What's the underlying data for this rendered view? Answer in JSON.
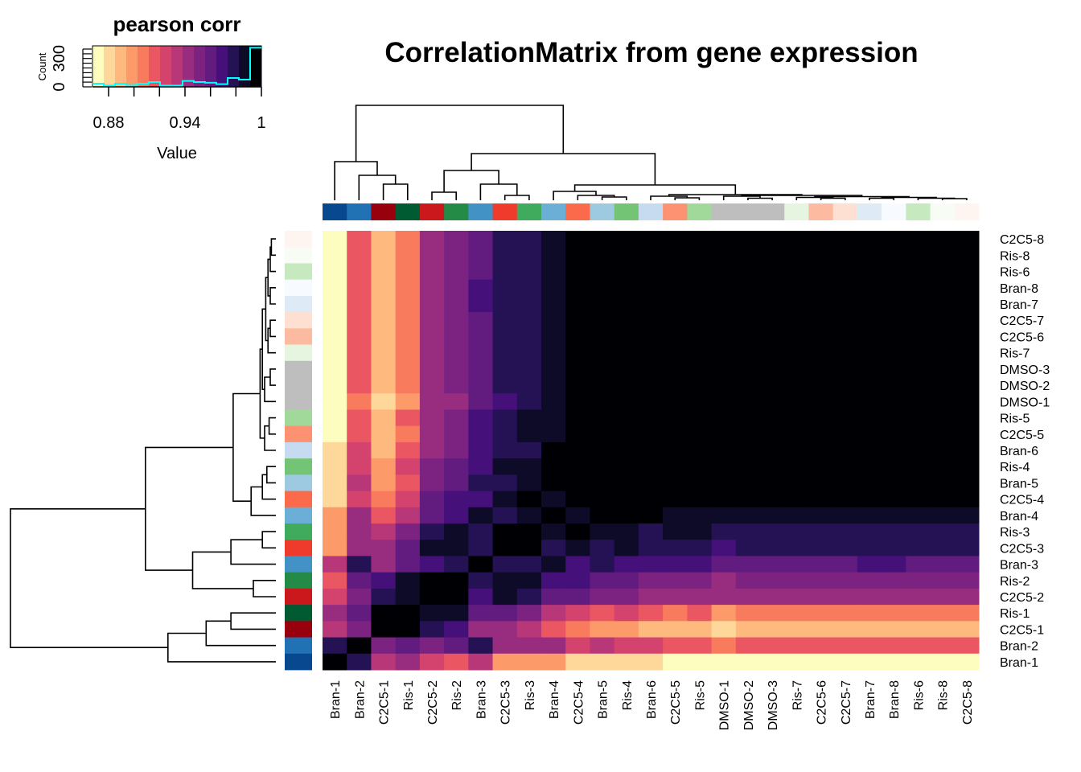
{
  "chart_data": {
    "type": "heatmap",
    "title": "CorrelationMatrix from gene expression",
    "columns": [
      "Bran-1",
      "Bran-2",
      "C2C5-1",
      "Ris-1",
      "C2C5-2",
      "Ris-2",
      "Bran-3",
      "C2C5-3",
      "Ris-3",
      "Bran-4",
      "C2C5-4",
      "Bran-5",
      "Ris-4",
      "Bran-6",
      "C2C5-5",
      "Ris-5",
      "DMSO-1",
      "DMSO-2",
      "DMSO-3",
      "Ris-7",
      "C2C5-6",
      "C2C5-7",
      "Bran-7",
      "Bran-8",
      "Ris-6",
      "Ris-8",
      "C2C5-8"
    ],
    "rows": [
      "C2C5-8",
      "Ris-8",
      "Ris-6",
      "Bran-8",
      "Bran-7",
      "C2C5-7",
      "C2C5-6",
      "Ris-7",
      "DMSO-3",
      "DMSO-2",
      "DMSO-1",
      "Ris-5",
      "C2C5-5",
      "Bran-6",
      "Ris-4",
      "Bran-5",
      "C2C5-4",
      "Bran-4",
      "Ris-3",
      "C2C5-3",
      "Bran-3",
      "Ris-2",
      "C2C5-2",
      "Ris-1",
      "C2C5-1",
      "Bran-2",
      "Bran-1"
    ],
    "values": [
      [
        0.872,
        0.916,
        0.89,
        0.907,
        0.943,
        0.952,
        0.961,
        0.978,
        0.978,
        0.987,
        0.996,
        0.996,
        0.996,
        0.996,
        0.996,
        0.996,
        0.996,
        0.996,
        0.996,
        0.996,
        0.996,
        0.996,
        0.996,
        0.996,
        0.996,
        0.996,
        1
      ],
      [
        0.872,
        0.916,
        0.89,
        0.907,
        0.943,
        0.952,
        0.961,
        0.978,
        0.978,
        0.987,
        0.996,
        0.996,
        0.996,
        0.996,
        0.996,
        0.996,
        0.996,
        0.996,
        0.996,
        0.996,
        0.996,
        0.996,
        0.996,
        0.996,
        0.996,
        1,
        0.996
      ],
      [
        0.872,
        0.916,
        0.89,
        0.907,
        0.943,
        0.952,
        0.961,
        0.978,
        0.978,
        0.987,
        0.996,
        0.996,
        0.996,
        0.996,
        0.996,
        0.996,
        0.996,
        0.996,
        0.996,
        0.996,
        0.996,
        0.996,
        0.996,
        0.996,
        1,
        0.996,
        0.996
      ],
      [
        0.872,
        0.916,
        0.89,
        0.907,
        0.943,
        0.952,
        0.97,
        0.978,
        0.978,
        0.987,
        0.996,
        0.996,
        0.996,
        0.996,
        0.996,
        0.996,
        0.996,
        0.996,
        0.996,
        0.996,
        0.996,
        0.996,
        0.996,
        1,
        0.996,
        0.996,
        0.996
      ],
      [
        0.872,
        0.916,
        0.89,
        0.907,
        0.943,
        0.952,
        0.97,
        0.978,
        0.978,
        0.987,
        0.996,
        0.996,
        0.996,
        0.996,
        0.996,
        0.996,
        0.996,
        0.996,
        0.996,
        0.996,
        0.996,
        0.996,
        1,
        0.996,
        0.996,
        0.996,
        0.996
      ],
      [
        0.872,
        0.916,
        0.89,
        0.907,
        0.943,
        0.952,
        0.961,
        0.978,
        0.978,
        0.987,
        0.996,
        0.996,
        0.996,
        0.996,
        0.996,
        0.996,
        0.996,
        0.996,
        0.996,
        0.996,
        0.996,
        1,
        0.996,
        0.996,
        0.996,
        0.996,
        0.996
      ],
      [
        0.872,
        0.916,
        0.89,
        0.907,
        0.943,
        0.952,
        0.961,
        0.978,
        0.978,
        0.987,
        0.996,
        0.996,
        0.996,
        0.996,
        0.996,
        0.996,
        0.996,
        0.996,
        0.996,
        0.996,
        1,
        0.996,
        0.996,
        0.996,
        0.996,
        0.996,
        0.996
      ],
      [
        0.872,
        0.916,
        0.89,
        0.907,
        0.943,
        0.952,
        0.961,
        0.978,
        0.978,
        0.987,
        0.996,
        0.996,
        0.996,
        0.996,
        0.996,
        0.996,
        0.996,
        0.996,
        0.996,
        1,
        0.996,
        0.996,
        0.996,
        0.996,
        0.996,
        0.996,
        0.996
      ],
      [
        0.872,
        0.916,
        0.89,
        0.907,
        0.943,
        0.952,
        0.961,
        0.978,
        0.978,
        0.987,
        0.996,
        0.996,
        0.996,
        0.996,
        0.996,
        0.996,
        0.996,
        0.996,
        1,
        0.996,
        0.996,
        0.996,
        0.996,
        0.996,
        0.996,
        0.996,
        0.996
      ],
      [
        0.872,
        0.916,
        0.89,
        0.907,
        0.943,
        0.952,
        0.961,
        0.978,
        0.978,
        0.987,
        0.996,
        0.996,
        0.996,
        0.996,
        0.996,
        0.996,
        0.996,
        1,
        0.996,
        0.996,
        0.996,
        0.996,
        0.996,
        0.996,
        0.996,
        0.996,
        0.996
      ],
      [
        0.872,
        0.907,
        0.881,
        0.898,
        0.943,
        0.943,
        0.961,
        0.97,
        0.978,
        0.987,
        0.996,
        0.996,
        0.996,
        0.996,
        0.996,
        0.996,
        1,
        0.996,
        0.996,
        0.996,
        0.996,
        0.996,
        0.996,
        0.996,
        0.996,
        0.996,
        0.996
      ],
      [
        0.872,
        0.916,
        0.89,
        0.916,
        0.943,
        0.952,
        0.97,
        0.978,
        0.987,
        0.987,
        0.996,
        0.996,
        0.996,
        0.996,
        0.996,
        1,
        0.996,
        0.996,
        0.996,
        0.996,
        0.996,
        0.996,
        0.996,
        0.996,
        0.996,
        0.996,
        0.996
      ],
      [
        0.872,
        0.916,
        0.89,
        0.907,
        0.943,
        0.952,
        0.97,
        0.978,
        0.987,
        0.987,
        0.996,
        0.996,
        0.996,
        0.996,
        1,
        0.996,
        0.996,
        0.996,
        0.996,
        0.996,
        0.996,
        0.996,
        0.996,
        0.996,
        0.996,
        0.996,
        0.996
      ],
      [
        0.881,
        0.925,
        0.89,
        0.916,
        0.943,
        0.952,
        0.97,
        0.978,
        0.978,
        0.996,
        0.996,
        0.996,
        0.996,
        1,
        0.996,
        0.996,
        0.996,
        0.996,
        0.996,
        0.996,
        0.996,
        0.996,
        0.996,
        0.996,
        0.996,
        0.996,
        0.996
      ],
      [
        0.881,
        0.925,
        0.898,
        0.925,
        0.952,
        0.961,
        0.97,
        0.987,
        0.987,
        0.996,
        0.996,
        0.996,
        1,
        0.996,
        0.996,
        0.996,
        0.996,
        0.996,
        0.996,
        0.996,
        0.996,
        0.996,
        0.996,
        0.996,
        0.996,
        0.996,
        0.996
      ],
      [
        0.881,
        0.934,
        0.898,
        0.916,
        0.952,
        0.961,
        0.978,
        0.978,
        0.987,
        0.996,
        0.996,
        1,
        0.996,
        0.996,
        0.996,
        0.996,
        0.996,
        0.996,
        0.996,
        0.996,
        0.996,
        0.996,
        0.996,
        0.996,
        0.996,
        0.996,
        0.996
      ],
      [
        0.881,
        0.925,
        0.907,
        0.925,
        0.961,
        0.97,
        0.97,
        0.987,
        0.996,
        0.987,
        1,
        0.996,
        0.996,
        0.996,
        0.996,
        0.996,
        0.996,
        0.996,
        0.996,
        0.996,
        0.996,
        0.996,
        0.996,
        0.996,
        0.996,
        0.996,
        0.996
      ],
      [
        0.898,
        0.943,
        0.916,
        0.934,
        0.961,
        0.97,
        0.987,
        0.978,
        0.987,
        1,
        0.987,
        0.996,
        0.996,
        0.996,
        0.987,
        0.987,
        0.987,
        0.987,
        0.987,
        0.987,
        0.987,
        0.987,
        0.987,
        0.987,
        0.987,
        0.987,
        0.987
      ],
      [
        0.898,
        0.943,
        0.934,
        0.952,
        0.978,
        0.987,
        0.978,
        0.996,
        1,
        0.987,
        0.996,
        0.987,
        0.987,
        0.978,
        0.987,
        0.987,
        0.978,
        0.978,
        0.978,
        0.978,
        0.978,
        0.978,
        0.978,
        0.978,
        0.978,
        0.978,
        0.978
      ],
      [
        0.898,
        0.943,
        0.943,
        0.961,
        0.987,
        0.987,
        0.978,
        1,
        0.996,
        0.978,
        0.987,
        0.978,
        0.987,
        0.978,
        0.978,
        0.978,
        0.97,
        0.978,
        0.978,
        0.978,
        0.978,
        0.978,
        0.978,
        0.978,
        0.978,
        0.978,
        0.978
      ],
      [
        0.934,
        0.978,
        0.943,
        0.961,
        0.97,
        0.978,
        1,
        0.978,
        0.978,
        0.987,
        0.97,
        0.978,
        0.97,
        0.97,
        0.97,
        0.97,
        0.961,
        0.961,
        0.961,
        0.961,
        0.961,
        0.961,
        0.97,
        0.97,
        0.961,
        0.961,
        0.961
      ],
      [
        0.916,
        0.961,
        0.97,
        0.987,
        0.996,
        1,
        0.978,
        0.987,
        0.987,
        0.97,
        0.97,
        0.961,
        0.961,
        0.952,
        0.952,
        0.952,
        0.943,
        0.952,
        0.952,
        0.952,
        0.952,
        0.952,
        0.952,
        0.952,
        0.952,
        0.952,
        0.952
      ],
      [
        0.925,
        0.952,
        0.978,
        0.987,
        1,
        0.996,
        0.97,
        0.987,
        0.978,
        0.961,
        0.961,
        0.952,
        0.952,
        0.943,
        0.943,
        0.943,
        0.943,
        0.943,
        0.943,
        0.943,
        0.943,
        0.943,
        0.943,
        0.943,
        0.943,
        0.943,
        0.943
      ],
      [
        0.943,
        0.961,
        0.996,
        1,
        0.987,
        0.987,
        0.961,
        0.961,
        0.952,
        0.934,
        0.925,
        0.916,
        0.925,
        0.916,
        0.907,
        0.916,
        0.898,
        0.907,
        0.907,
        0.907,
        0.907,
        0.907,
        0.907,
        0.907,
        0.907,
        0.907,
        0.907
      ],
      [
        0.934,
        0.952,
        1,
        0.996,
        0.978,
        0.97,
        0.943,
        0.943,
        0.934,
        0.916,
        0.907,
        0.898,
        0.898,
        0.89,
        0.89,
        0.89,
        0.881,
        0.89,
        0.89,
        0.89,
        0.89,
        0.89,
        0.89,
        0.89,
        0.89,
        0.89,
        0.89
      ],
      [
        0.978,
        1,
        0.952,
        0.961,
        0.952,
        0.961,
        0.978,
        0.943,
        0.943,
        0.943,
        0.925,
        0.934,
        0.925,
        0.925,
        0.916,
        0.916,
        0.907,
        0.916,
        0.916,
        0.916,
        0.916,
        0.916,
        0.916,
        0.916,
        0.916,
        0.916,
        0.916
      ],
      [
        1,
        0.978,
        0.934,
        0.943,
        0.925,
        0.916,
        0.934,
        0.898,
        0.898,
        0.898,
        0.881,
        0.881,
        0.881,
        0.881,
        0.872,
        0.872,
        0.872,
        0.872,
        0.872,
        0.872,
        0.872,
        0.872,
        0.872,
        0.872,
        0.872,
        0.872,
        0.872
      ]
    ],
    "zlim": [
      0.8674,
      1.0
    ],
    "palette": [
      "#FCFDBF",
      "#FED89A",
      "#FEB97E",
      "#FD9A6A",
      "#F97B5D",
      "#EA5662",
      "#D3436E",
      "#B73779",
      "#982D80",
      "#7C2382",
      "#621B7F",
      "#45107A",
      "#251255",
      "#0E0B29",
      "#000004"
    ],
    "sample_colors": {
      "Bran-1": "#08488E",
      "Bran-2": "#2171B5",
      "C2C5-1": "#99000D",
      "Ris-1": "#005A32",
      "C2C5-2": "#CB181D",
      "Ris-2": "#238B45",
      "Bran-3": "#4292C6",
      "C2C5-3": "#EF3B2C",
      "Ris-3": "#41AB5D",
      "Bran-4": "#6BAED6",
      "C2C5-4": "#FB6A4A",
      "Bran-5": "#9ECAE1",
      "Ris-4": "#74C476",
      "Bran-6": "#C6DBEF",
      "C2C5-5": "#FC9272",
      "Ris-5": "#A1D99B",
      "DMSO-1": "#BEBEBE",
      "DMSO-2": "#BEBEBE",
      "DMSO-3": "#BEBEBE",
      "Ris-7": "#E5F5E0",
      "C2C5-6": "#FCBBA1",
      "C2C5-7": "#FEE0D2",
      "Bran-7": "#DEEBF7",
      "Bran-8": "#F7FBFF",
      "Ris-6": "#C7E9C0",
      "Ris-8": "#F7FCF5",
      "C2C5-8": "#FFF5F0"
    },
    "dendrogram": {
      "h": 1.18,
      "c": [
        {
          "h": 0.48,
          "c": [
            "Bran-1",
            {
              "h": 0.31,
              "c": [
                "Bran-2",
                {
                  "h": 0.2,
                  "c": [
                    "C2C5-1",
                    "Ris-1"
                  ]
                }
              ]
            }
          ]
        },
        {
          "h": 0.58,
          "c": [
            {
              "h": 0.37,
              "c": [
                {
                  "h": 0.1,
                  "c": [
                    "C2C5-2",
                    "Ris-2"
                  ]
                },
                {
                  "h": 0.2,
                  "c": [
                    "Bran-3",
                    {
                      "h": 0.06,
                      "c": [
                        "C2C5-3",
                        "Ris-3"
                      ]
                    }
                  ]
                }
              ]
            },
            {
              "h": 0.19,
              "c": [
                {
                  "h": 0.11,
                  "c": [
                    "Bran-4",
                    {
                      "h": 0.06,
                      "c": [
                        "C2C5-4",
                        {
                          "h": 0.04,
                          "c": [
                            "Bran-5",
                            "Ris-4"
                          ]
                        }
                      ]
                    }
                  ]
                },
                {
                  "h": 0.07,
                  "c": [
                    {
                      "h": 0.05,
                      "c": [
                        "Bran-6",
                        {
                          "h": 0.03,
                          "c": [
                            "C2C5-5",
                            "Ris-5"
                          ]
                        }
                      ]
                    },
                    {
                      "h": 0.06,
                      "c": [
                        {
                          "h": 0.05,
                          "c": [
                            "DMSO-1",
                            {
                              "h": 0.025,
                              "c": [
                                "DMSO-2",
                                "DMSO-3"
                              ]
                            }
                          ]
                        },
                        {
                          "h": 0.045,
                          "c": [
                            {
                              "h": 0.035,
                              "c": [
                                "Ris-7",
                                {
                                  "h": 0.025,
                                  "c": [
                                    "C2C5-6",
                                    "C2C5-7"
                                  ]
                                }
                              ]
                            },
                            {
                              "h": 0.035,
                              "c": [
                                {
                                  "h": 0.025,
                                  "c": [
                                    "Bran-7",
                                    "Bran-8"
                                  ]
                                },
                                {
                                  "h": 0.025,
                                  "c": [
                                    "Ris-6",
                                    {
                                      "h": 0.02,
                                      "c": [
                                        "Ris-8",
                                        "C2C5-8"
                                      ]
                                    }
                                  ]
                                }
                              ]
                            }
                          ]
                        }
                      ]
                    }
                  ]
                }
              ]
            }
          ]
        }
      ]
    },
    "color_key": {
      "title": "pearson corr",
      "xlabel": "Value",
      "ylabel": "Count",
      "xticks": [
        0.88,
        0.9,
        0.92,
        0.94,
        0.96,
        0.98,
        1.0
      ],
      "xtick_labels": [
        {
          "v": 0.88,
          "label": "0.88"
        },
        {
          "v": 0.94,
          "label": "0.94"
        },
        {
          "v": 1.0,
          "label": "1"
        }
      ],
      "ytick_labels": [
        {
          "v": 0,
          "label": "0"
        },
        {
          "v": 300,
          "label": "300"
        }
      ],
      "ylim": [
        0,
        434
      ],
      "histogram_color": "#00FFFF",
      "histogram_counts": [
        34,
        14,
        34,
        20,
        34,
        51,
        14,
        14,
        63,
        51,
        43,
        29,
        94,
        77,
        414
      ]
    }
  }
}
